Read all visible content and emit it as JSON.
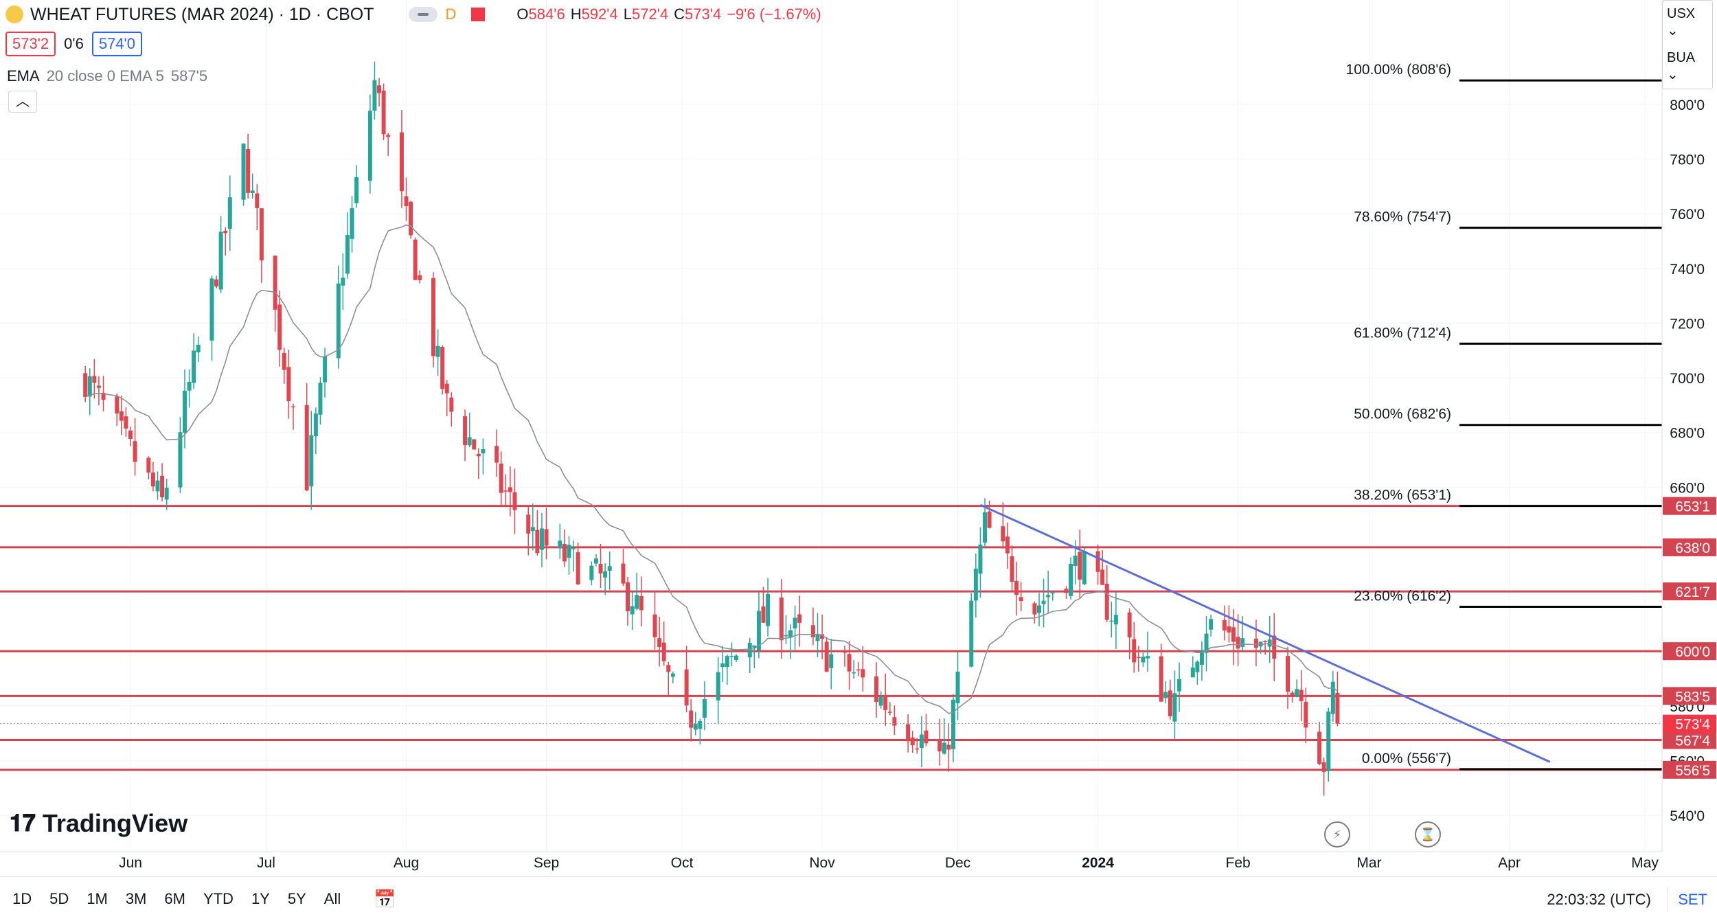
{
  "header": {
    "symbol": "WHEAT FUTURES (MAR 2024) · 1D · CBOT",
    "interval_chip": "D",
    "ohlc": [
      {
        "k": "O",
        "v": "584'6"
      },
      {
        "k": "H",
        "v": "592'4"
      },
      {
        "k": "L",
        "v": "572'4"
      },
      {
        "k": "C",
        "v": "573'4"
      },
      {
        "k": "",
        "v": "−9'6 (−1.67%)"
      }
    ],
    "bid": "573'2",
    "spread": "0'6",
    "ask": "574'0",
    "indicator_name": "EMA",
    "indicator_params": "20 close 0 EMA 5",
    "indicator_value": "587'5"
  },
  "controls": {
    "currency": "USX",
    "currency_caret": "⌄",
    "unit": "BUA",
    "collapse_icon": "chevron-up-icon"
  },
  "watermark": "TradingView",
  "footer": {
    "ranges": [
      "1D",
      "5D",
      "1M",
      "3M",
      "6M",
      "YTD",
      "1Y",
      "5Y",
      "All"
    ],
    "time": "22:03:32 (UTC)",
    "set_label": "SET"
  },
  "colors": {
    "up": "#26a69a",
    "down": "#e0464f",
    "level": "#d44450",
    "trend": "#5b6fd6",
    "ema": "#8a8f99"
  },
  "chart_data": {
    "type": "candlestick",
    "title": "WHEAT FUTURES (MAR 2024) · 1D · CBOT",
    "x_ticks": [
      "Jun",
      "Jul",
      "Aug",
      "Sep",
      "Oct",
      "Nov",
      "Dec",
      "2024",
      "Feb",
      "Mar",
      "Apr",
      "May"
    ],
    "x_tick_dates": [
      "2023-06-01",
      "2023-07-01",
      "2023-08-01",
      "2023-09-01",
      "2023-10-01",
      "2023-11-01",
      "2023-12-01",
      "2024-01-01",
      "2024-02-01",
      "2024-03-01",
      "2024-04-01",
      "2024-05-01"
    ],
    "y_range": [
      532,
      812
    ],
    "y_ticks": [
      {
        "value": 800,
        "label": "800'0"
      },
      {
        "value": 780,
        "label": "780'0"
      },
      {
        "value": 760,
        "label": "760'0"
      },
      {
        "value": 740,
        "label": "740'0"
      },
      {
        "value": 720,
        "label": "720'0"
      },
      {
        "value": 700,
        "label": "700'0"
      },
      {
        "value": 680,
        "label": "680'0"
      },
      {
        "value": 660,
        "label": "660'0"
      },
      {
        "value": 580,
        "label": "580'0"
      },
      {
        "value": 560,
        "label": "560'0"
      },
      {
        "value": 540,
        "label": "540'0"
      }
    ],
    "fib_levels": [
      {
        "label": "100.00% (808'6)",
        "value": 808.75
      },
      {
        "label": "78.60% (754'7)",
        "value": 754.875
      },
      {
        "label": "61.80% (712'4)",
        "value": 712.5
      },
      {
        "label": "50.00% (682'6)",
        "value": 682.75
      },
      {
        "label": "38.20% (653'1)",
        "value": 653.125
      },
      {
        "label": "23.60% (616'2)",
        "value": 616.25
      },
      {
        "label": "0.00% (556'7)",
        "value": 556.875
      }
    ],
    "horizontal_levels": [
      {
        "label": "653'1",
        "value": 653.125
      },
      {
        "label": "638'0",
        "value": 638.0
      },
      {
        "label": "621'7",
        "value": 621.875
      },
      {
        "label": "600'0",
        "value": 600.0
      },
      {
        "label": "583'5",
        "value": 583.625
      },
      {
        "label": "567'4",
        "value": 567.5
      },
      {
        "label": "556'5",
        "value": 556.625
      }
    ],
    "last_price": {
      "label": "573'4",
      "value": 573.5
    },
    "trendline": [
      {
        "date": "2023-12-06",
        "value": 653.5
      },
      {
        "date": "2024-04-10",
        "value": 559.5
      }
    ],
    "key_points": [
      {
        "date": "2023-05-22",
        "value": 700
      },
      {
        "date": "2023-06-08",
        "value": 654
      },
      {
        "date": "2023-06-26",
        "value": 782
      },
      {
        "date": "2023-07-10",
        "value": 664
      },
      {
        "date": "2023-07-25",
        "value": 808
      },
      {
        "date": "2023-08-10",
        "value": 690
      },
      {
        "date": "2023-08-30",
        "value": 640
      },
      {
        "date": "2023-09-20",
        "value": 620
      },
      {
        "date": "2023-10-02",
        "value": 574
      },
      {
        "date": "2023-10-20",
        "value": 614
      },
      {
        "date": "2023-11-08",
        "value": 592
      },
      {
        "date": "2023-11-28",
        "value": 560
      },
      {
        "date": "2023-12-07",
        "value": 646
      },
      {
        "date": "2023-12-18",
        "value": 616
      },
      {
        "date": "2023-12-28",
        "value": 633
      },
      {
        "date": "2024-01-10",
        "value": 598
      },
      {
        "date": "2024-01-18",
        "value": 580
      },
      {
        "date": "2024-01-25",
        "value": 610
      },
      {
        "date": "2024-02-07",
        "value": 600
      },
      {
        "date": "2024-02-14",
        "value": 588
      },
      {
        "date": "2024-02-20",
        "value": 559
      },
      {
        "date": "2024-02-22",
        "value": 586
      },
      {
        "date": "2024-02-23",
        "value": 573.5
      }
    ]
  }
}
